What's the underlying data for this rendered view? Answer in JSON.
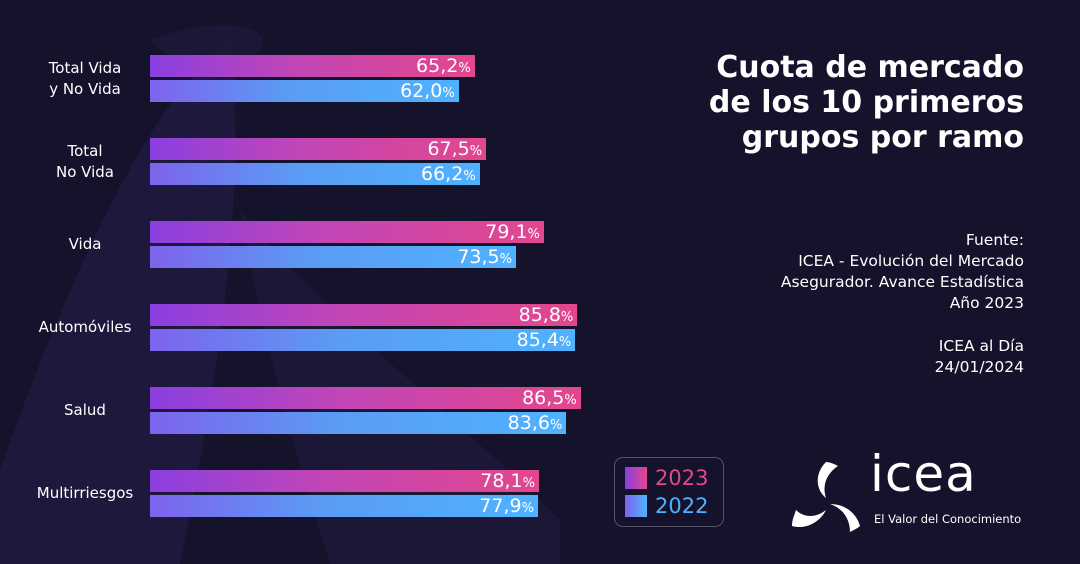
{
  "title": "Cuota de mercado de los 10 primeros grupos por ramo",
  "source_label": "Fuente:",
  "source_text": "ICEA - Evolución del Mercado Asegurador. Avance Estadística Año 2023",
  "source_lines": [
    "ICEA - Evolución del Mercado",
    "Asegurador. Avance Estadística",
    "Año 2023"
  ],
  "publication": "ICEA al Día",
  "date": "24/01/2024",
  "logo": {
    "wordmark": "icea",
    "tagline": "El Valor del Conocimiento",
    "icon": "icea-swirl-icon"
  },
  "colors": {
    "background": "#15122c",
    "series_2023": "#e3478d",
    "series_2022": "#4fb2ff",
    "text": "#ffffff"
  },
  "chart_data": {
    "type": "bar",
    "orientation": "horizontal",
    "categories": [
      "Total Vida\ny No Vida",
      "Total\nNo Vida",
      "Vida",
      "Automóviles",
      "Salud",
      "Multirriesgos"
    ],
    "series": [
      {
        "name": "2023",
        "color": "#e3478d",
        "values": [
          65.2,
          67.5,
          79.1,
          85.8,
          86.5,
          78.1
        ],
        "labels": [
          "65,2",
          "67,5",
          "79,1",
          "85,8",
          "86,5",
          "78,1"
        ]
      },
      {
        "name": "2022",
        "color": "#4fb2ff",
        "values": [
          62.0,
          66.2,
          73.5,
          85.4,
          83.6,
          77.9
        ],
        "labels": [
          "62,0",
          "66,2",
          "73,5",
          "85,4",
          "83,6",
          "77,9"
        ]
      }
    ],
    "unit": "%",
    "title": "Cuota de mercado de los 10 primeros grupos por ramo",
    "legend_position": "bottom-right",
    "grid": false
  }
}
